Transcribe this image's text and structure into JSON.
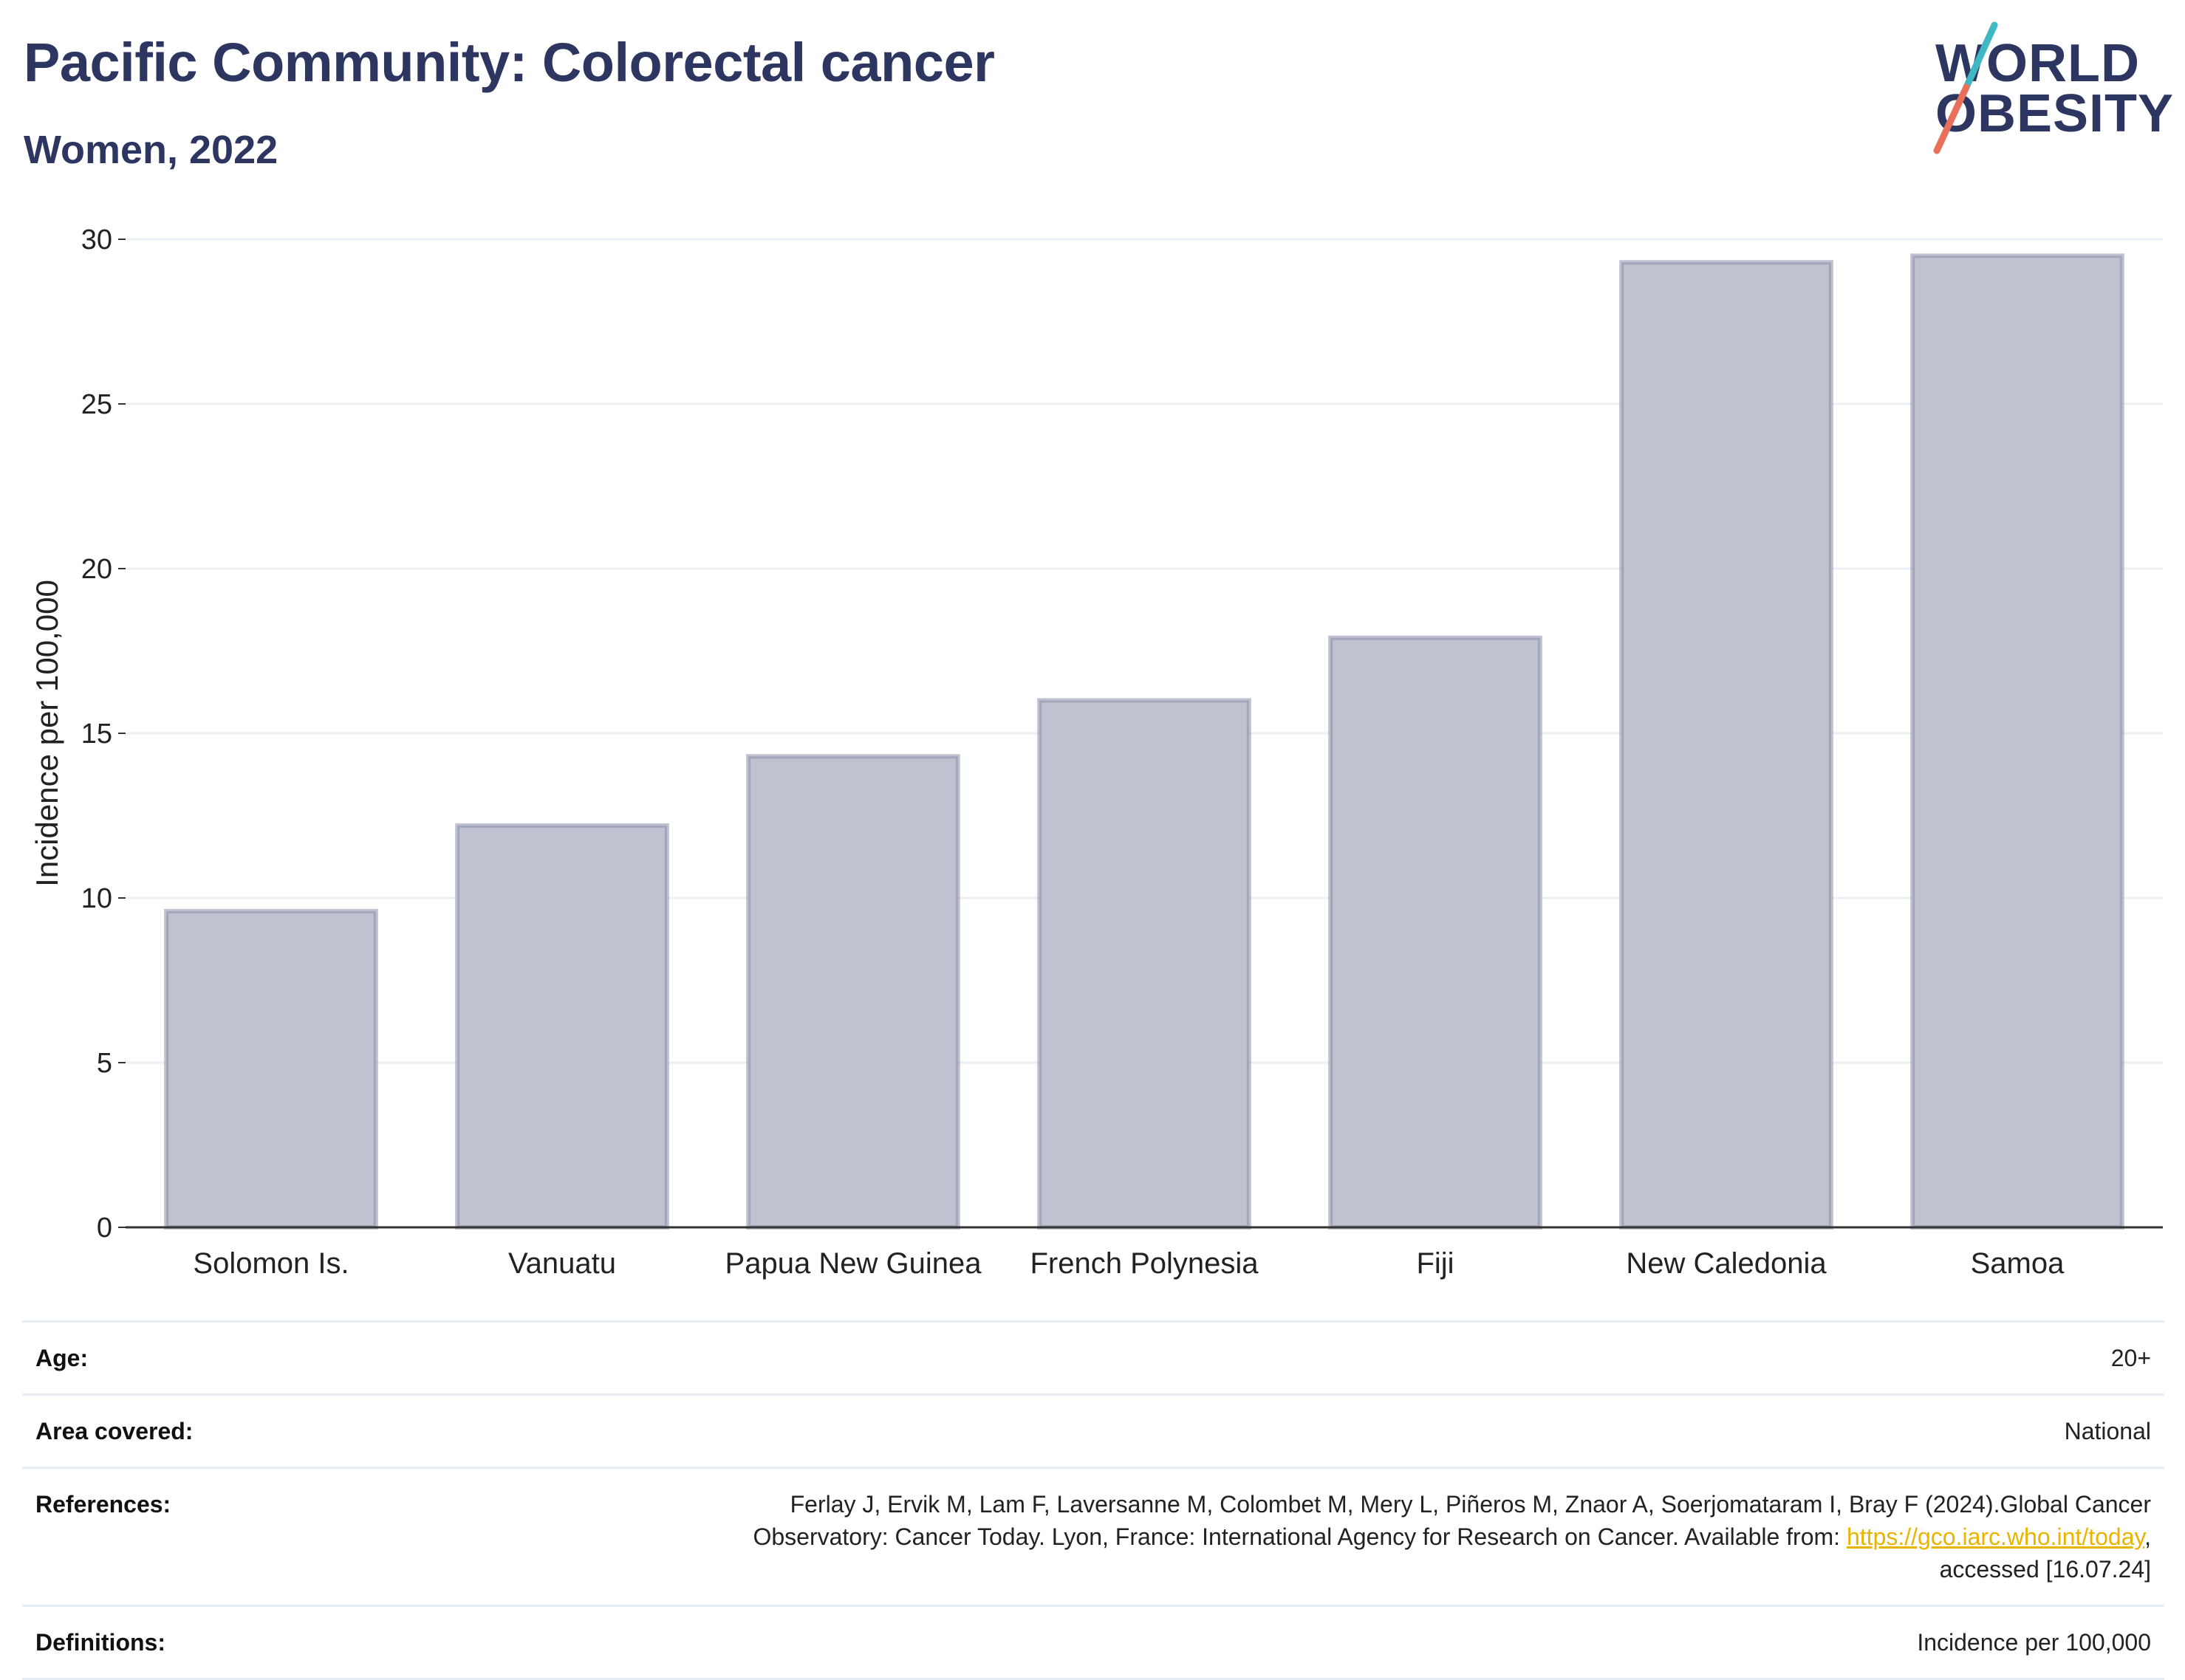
{
  "header": {
    "title": "Pacific Community: Colorectal cancer",
    "subtitle": "Women, 2022"
  },
  "logo": {
    "line1": "WORLD",
    "line2": "OBESITY",
    "colors": {
      "text": "#2d3561",
      "slash_top": "#3fb8c4",
      "slash_bottom": "#e8705b"
    }
  },
  "chart_data": {
    "type": "bar",
    "categories": [
      "Solomon Is.",
      "Vanuatu",
      "Papua New Guinea",
      "French Polynesia",
      "Fiji",
      "New Caledonia",
      "Samoa"
    ],
    "values": [
      9.6,
      12.2,
      14.3,
      16.0,
      17.9,
      29.3,
      29.5
    ],
    "ylabel": "Incidence per 100,000",
    "ylim": [
      0,
      30
    ],
    "yticks": [
      0,
      5,
      10,
      15,
      20,
      25,
      30
    ],
    "grid": true,
    "colors": {
      "bar_fill": "#bfc2cf",
      "bar_stroke": "#8a8fab",
      "grid": "#eceff3",
      "axis": "#333333"
    }
  },
  "info": {
    "rows": [
      {
        "key": "Age:",
        "value": "20+"
      },
      {
        "key": "Area covered:",
        "value": "National"
      },
      {
        "key": "References:",
        "value_line1": "Ferlay J, Ervik M, Lam F, Laversanne M, Colombet M, Mery L, Piñeros M, Znaor A, Soerjomataram I, Bray F (2024).Global Cancer",
        "value_line2_pre": "Observatory: Cancer Today. Lyon, France: International Agency for Research on Cancer. Available from: ",
        "link": "https://gco.iarc.who.int/today",
        "value_line2_post": ",",
        "value_line3": "accessed [16.07.24]"
      },
      {
        "key": "Definitions:",
        "value": "Incidence per 100,000"
      }
    ]
  }
}
